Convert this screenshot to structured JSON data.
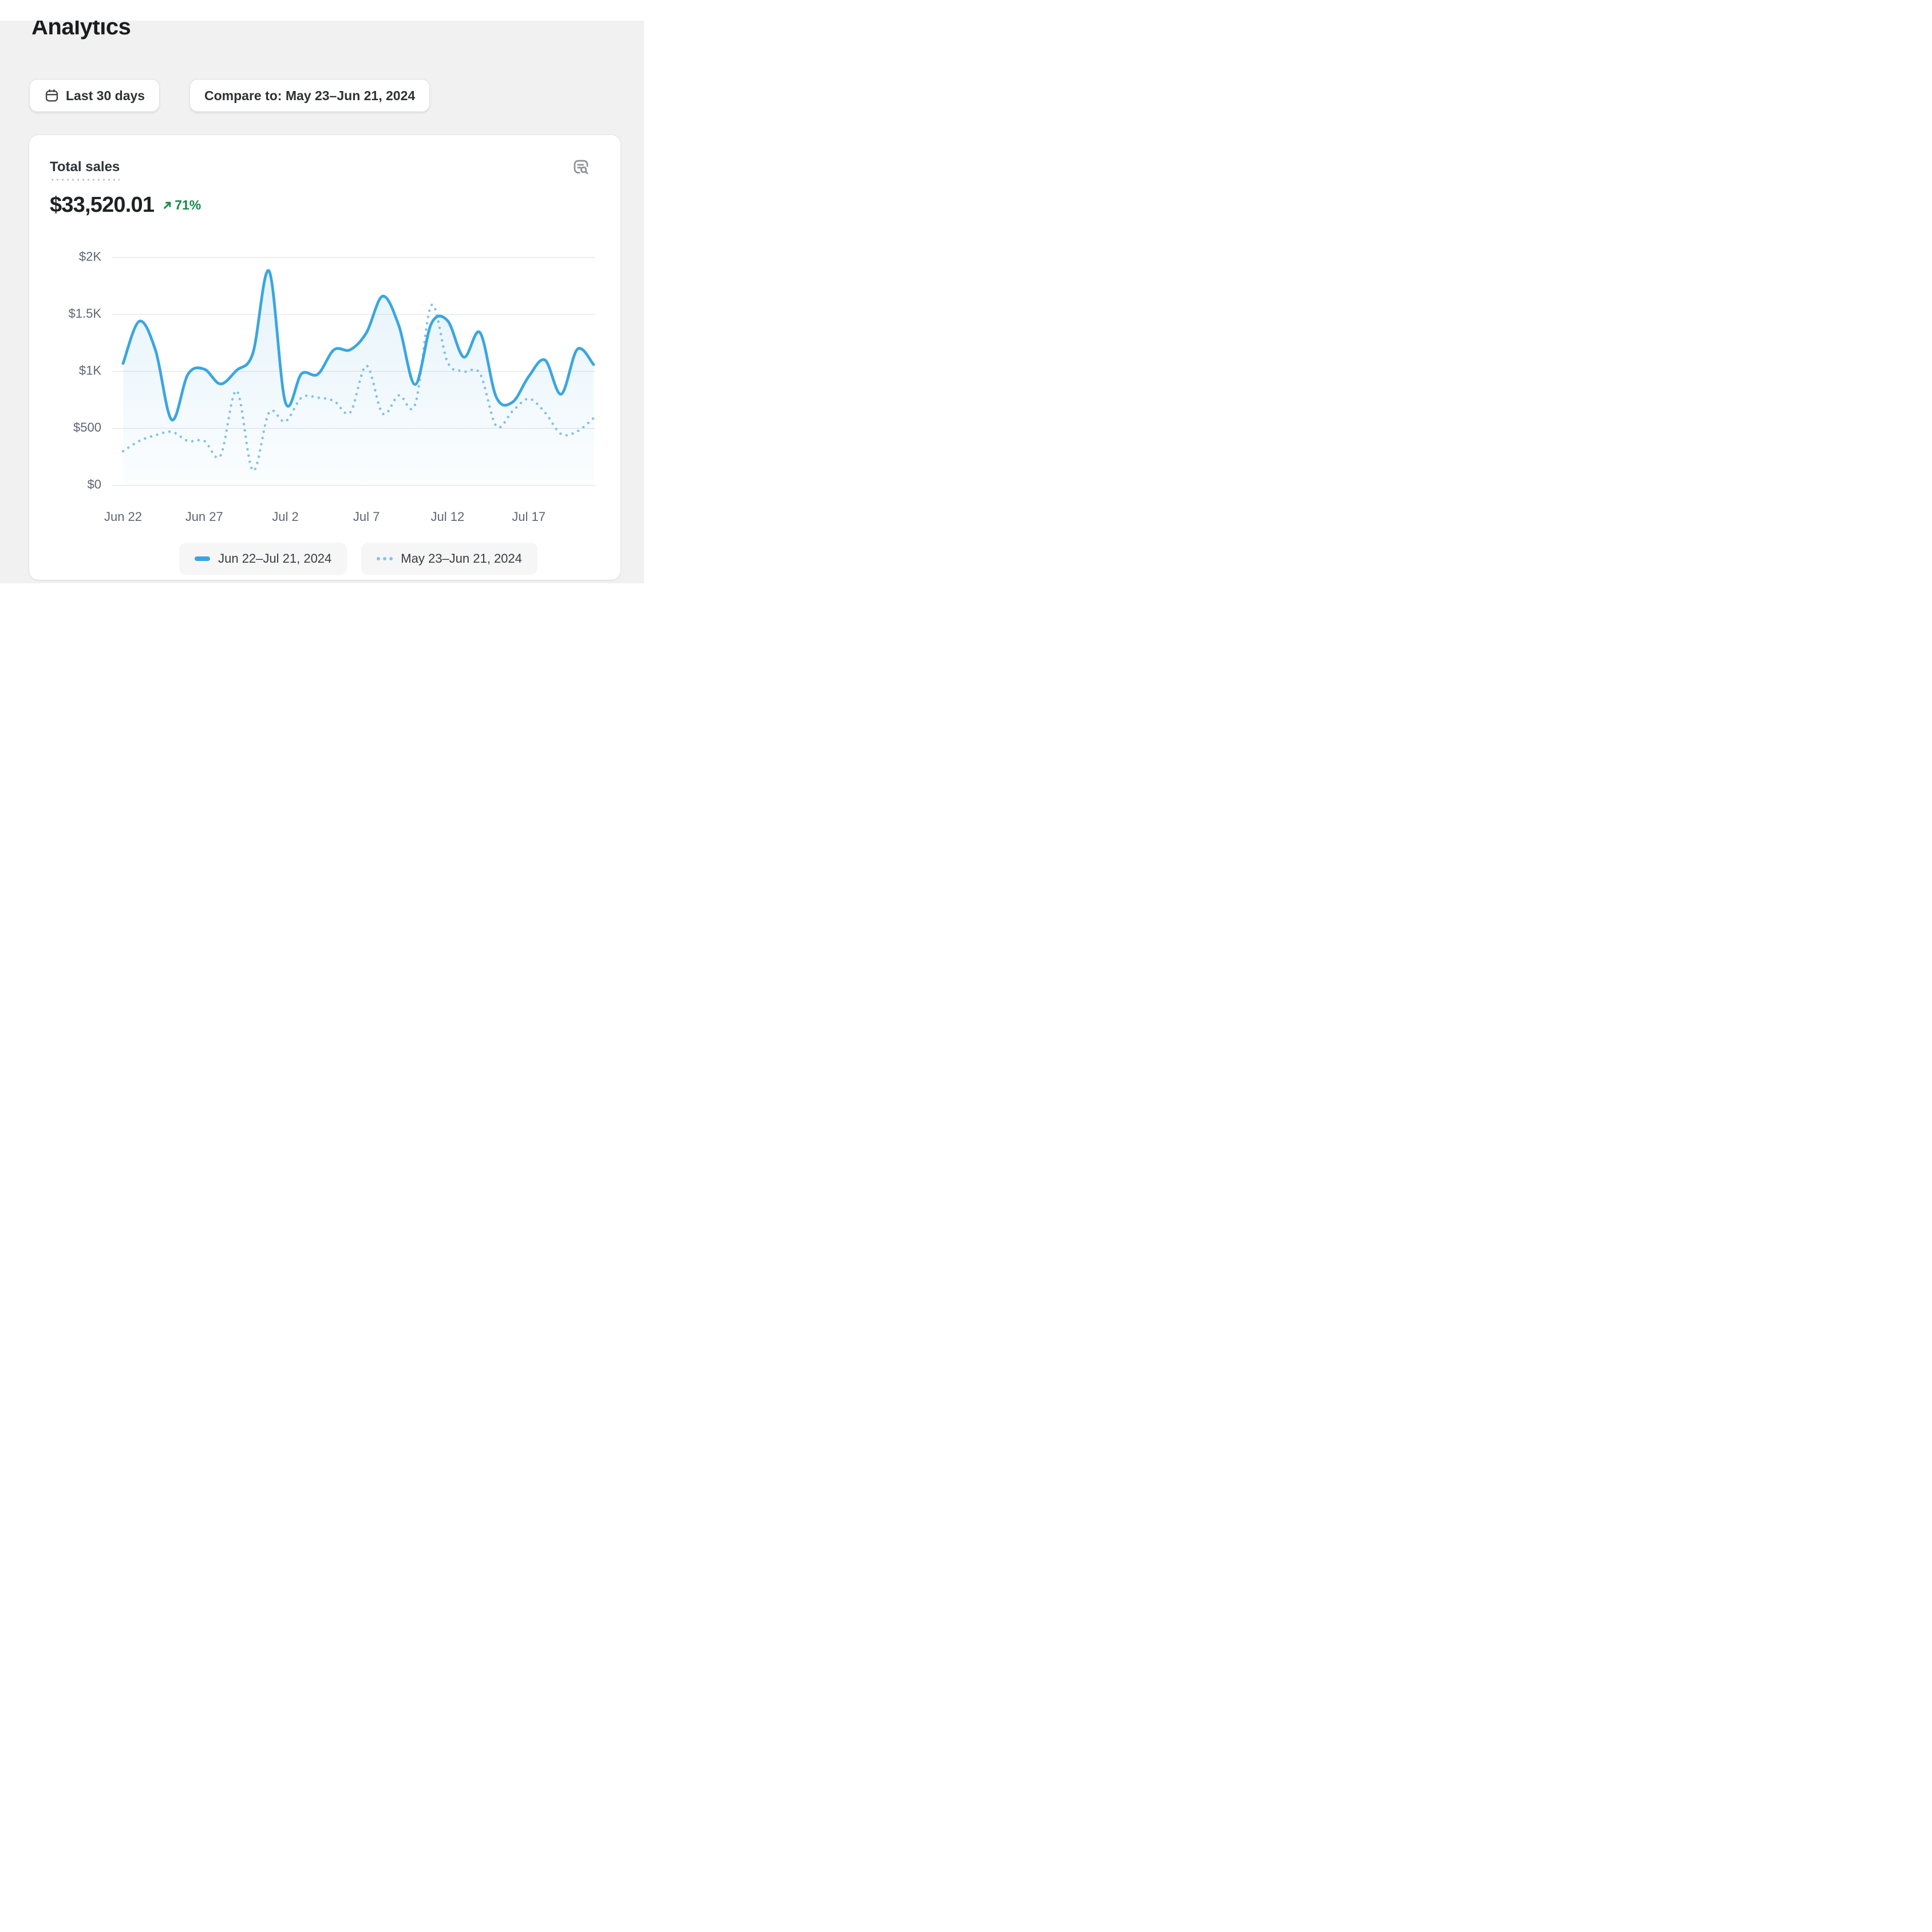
{
  "page": {
    "title": "Analytics"
  },
  "toolbar": {
    "date_range_button": {
      "icon": "calendar-icon",
      "label": "Last 30 days"
    },
    "compare_button": {
      "label": "Compare to: May 23–Jun 21, 2024"
    }
  },
  "card": {
    "title": "Total sales",
    "report_icon": "view-report-magnifier-icon",
    "metric": {
      "value": "$33,520.01",
      "change_percent": "71%",
      "change_direction": "up",
      "change_color": "#148a4b"
    }
  },
  "chart_data": {
    "type": "line",
    "title": "Total sales",
    "grid": true,
    "legend_position": "bottom",
    "x_axis": {
      "num_points": 30,
      "tick_labels": [
        "Jun 22",
        "Jun 27",
        "Jul 2",
        "Jul 7",
        "Jul 12",
        "Jul 17"
      ],
      "tick_indices": [
        0,
        5,
        10,
        15,
        20,
        25
      ]
    },
    "y_axis": {
      "range": [
        0,
        2000
      ],
      "ticks": [
        {
          "value": 2000,
          "label": "$2K"
        },
        {
          "value": 1500,
          "label": "$1.5K"
        },
        {
          "value": 1000,
          "label": "$1K"
        },
        {
          "value": 500,
          "label": "$500"
        },
        {
          "value": 0,
          "label": "$0"
        }
      ]
    },
    "series": [
      {
        "name": "Jun 22–Jul 21, 2024",
        "style": "solid",
        "color": "#3aa6e0",
        "area_fill": true,
        "values": [
          1070,
          1440,
          1185,
          575,
          975,
          1020,
          890,
          1010,
          1160,
          1880,
          730,
          980,
          975,
          1190,
          1190,
          1340,
          1660,
          1400,
          885,
          1420,
          1445,
          1125,
          1340,
          775,
          730,
          955,
          1100,
          800,
          1195,
          1060
        ]
      },
      {
        "name": "May 23–Jun 21, 2024",
        "style": "dotted",
        "color": "#85c3ea",
        "area_fill": false,
        "values": [
          300,
          390,
          440,
          470,
          390,
          390,
          260,
          830,
          130,
          640,
          560,
          770,
          770,
          740,
          640,
          1050,
          630,
          790,
          710,
          1580,
          1080,
          1000,
          980,
          520,
          650,
          760,
          640,
          450,
          475,
          590
        ]
      }
    ],
    "axis_label_color": "#5e6673",
    "gridline_color": "#e9eaec"
  }
}
